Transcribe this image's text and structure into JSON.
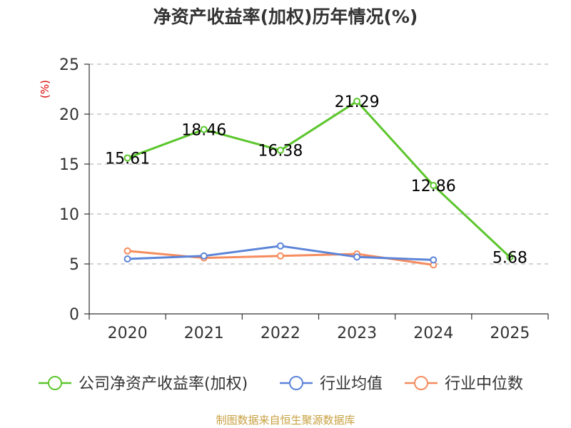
{
  "chart_data": {
    "type": "line",
    "title": "净资产收益率(加权)历年情况(%)",
    "ylabel": "(%)",
    "xlabel": "",
    "categories": [
      "2020",
      "2021",
      "2022",
      "2023",
      "2024",
      "2025"
    ],
    "ylim": [
      0,
      25
    ],
    "yticks": [
      "0",
      "5",
      "10",
      "15",
      "20",
      "25"
    ],
    "grid": true,
    "legend_position": "bottom",
    "series": [
      {
        "name": "公司净资产收益率(加权)",
        "color": "#5cc62d",
        "values": [
          15.61,
          18.46,
          16.38,
          21.29,
          12.86,
          5.68
        ],
        "labels": [
          "15.61",
          "18.46",
          "16.38",
          "21.29",
          "12.86",
          "5.68"
        ]
      },
      {
        "name": "行业均值",
        "color": "#5b84d8",
        "values": [
          5.5,
          5.8,
          6.8,
          5.7,
          5.4,
          null
        ]
      },
      {
        "name": "行业中位数",
        "color": "#f58c5e",
        "values": [
          6.3,
          5.6,
          5.8,
          6.0,
          4.9,
          null
        ]
      }
    ]
  },
  "footer": {
    "source": "制图数据来自恒生聚源数据库"
  }
}
